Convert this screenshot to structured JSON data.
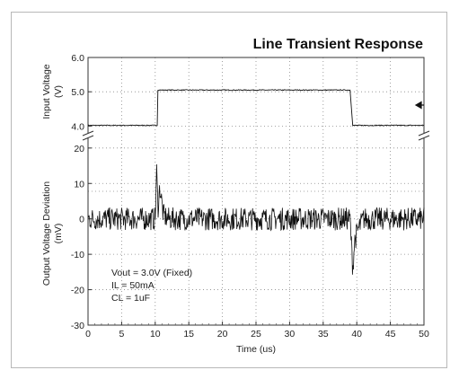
{
  "chart_data": {
    "type": "line",
    "title": "Line Transient Response",
    "xlabel": "Time (us)",
    "xlim": [
      0,
      50
    ],
    "x_ticks": [
      "0",
      "5",
      "10",
      "15",
      "20",
      "25",
      "30",
      "35",
      "40",
      "45",
      "50"
    ],
    "grid": true,
    "top_panel": {
      "ylabel_line1": "Input Voltage",
      "ylabel_line2": "(V)",
      "ylim": [
        3.8,
        6.0
      ],
      "y_ticks": [
        "6.0",
        "5.0",
        "4.0"
      ],
      "series": [
        {
          "x": [
            0,
            10.3,
            10.4,
            39.0,
            39.4,
            50
          ],
          "y": [
            4.02,
            4.02,
            5.05,
            5.05,
            4.02,
            4.02
          ]
        }
      ]
    },
    "bottom_panel": {
      "ylabel_line1": "Output Voltage Deviation",
      "ylabel_line2": "(mV)",
      "ylim": [
        -30,
        23
      ],
      "y_ticks": [
        "20",
        "10",
        "0",
        "-10",
        "-20",
        "-30"
      ],
      "series": [
        {
          "x": [
            0,
            10,
            10.2,
            10.4,
            10.7,
            11.2,
            12,
            39,
            39.4,
            39.7,
            40.2,
            41,
            50
          ],
          "y": [
            0,
            0,
            14,
            3,
            9,
            1,
            0,
            0,
            -14,
            -6,
            -3,
            0,
            0
          ]
        }
      ]
    },
    "annotations": [
      "Vout = 3.0V (Fixed)",
      "IL = 50mA",
      "CL = 1uF"
    ]
  }
}
